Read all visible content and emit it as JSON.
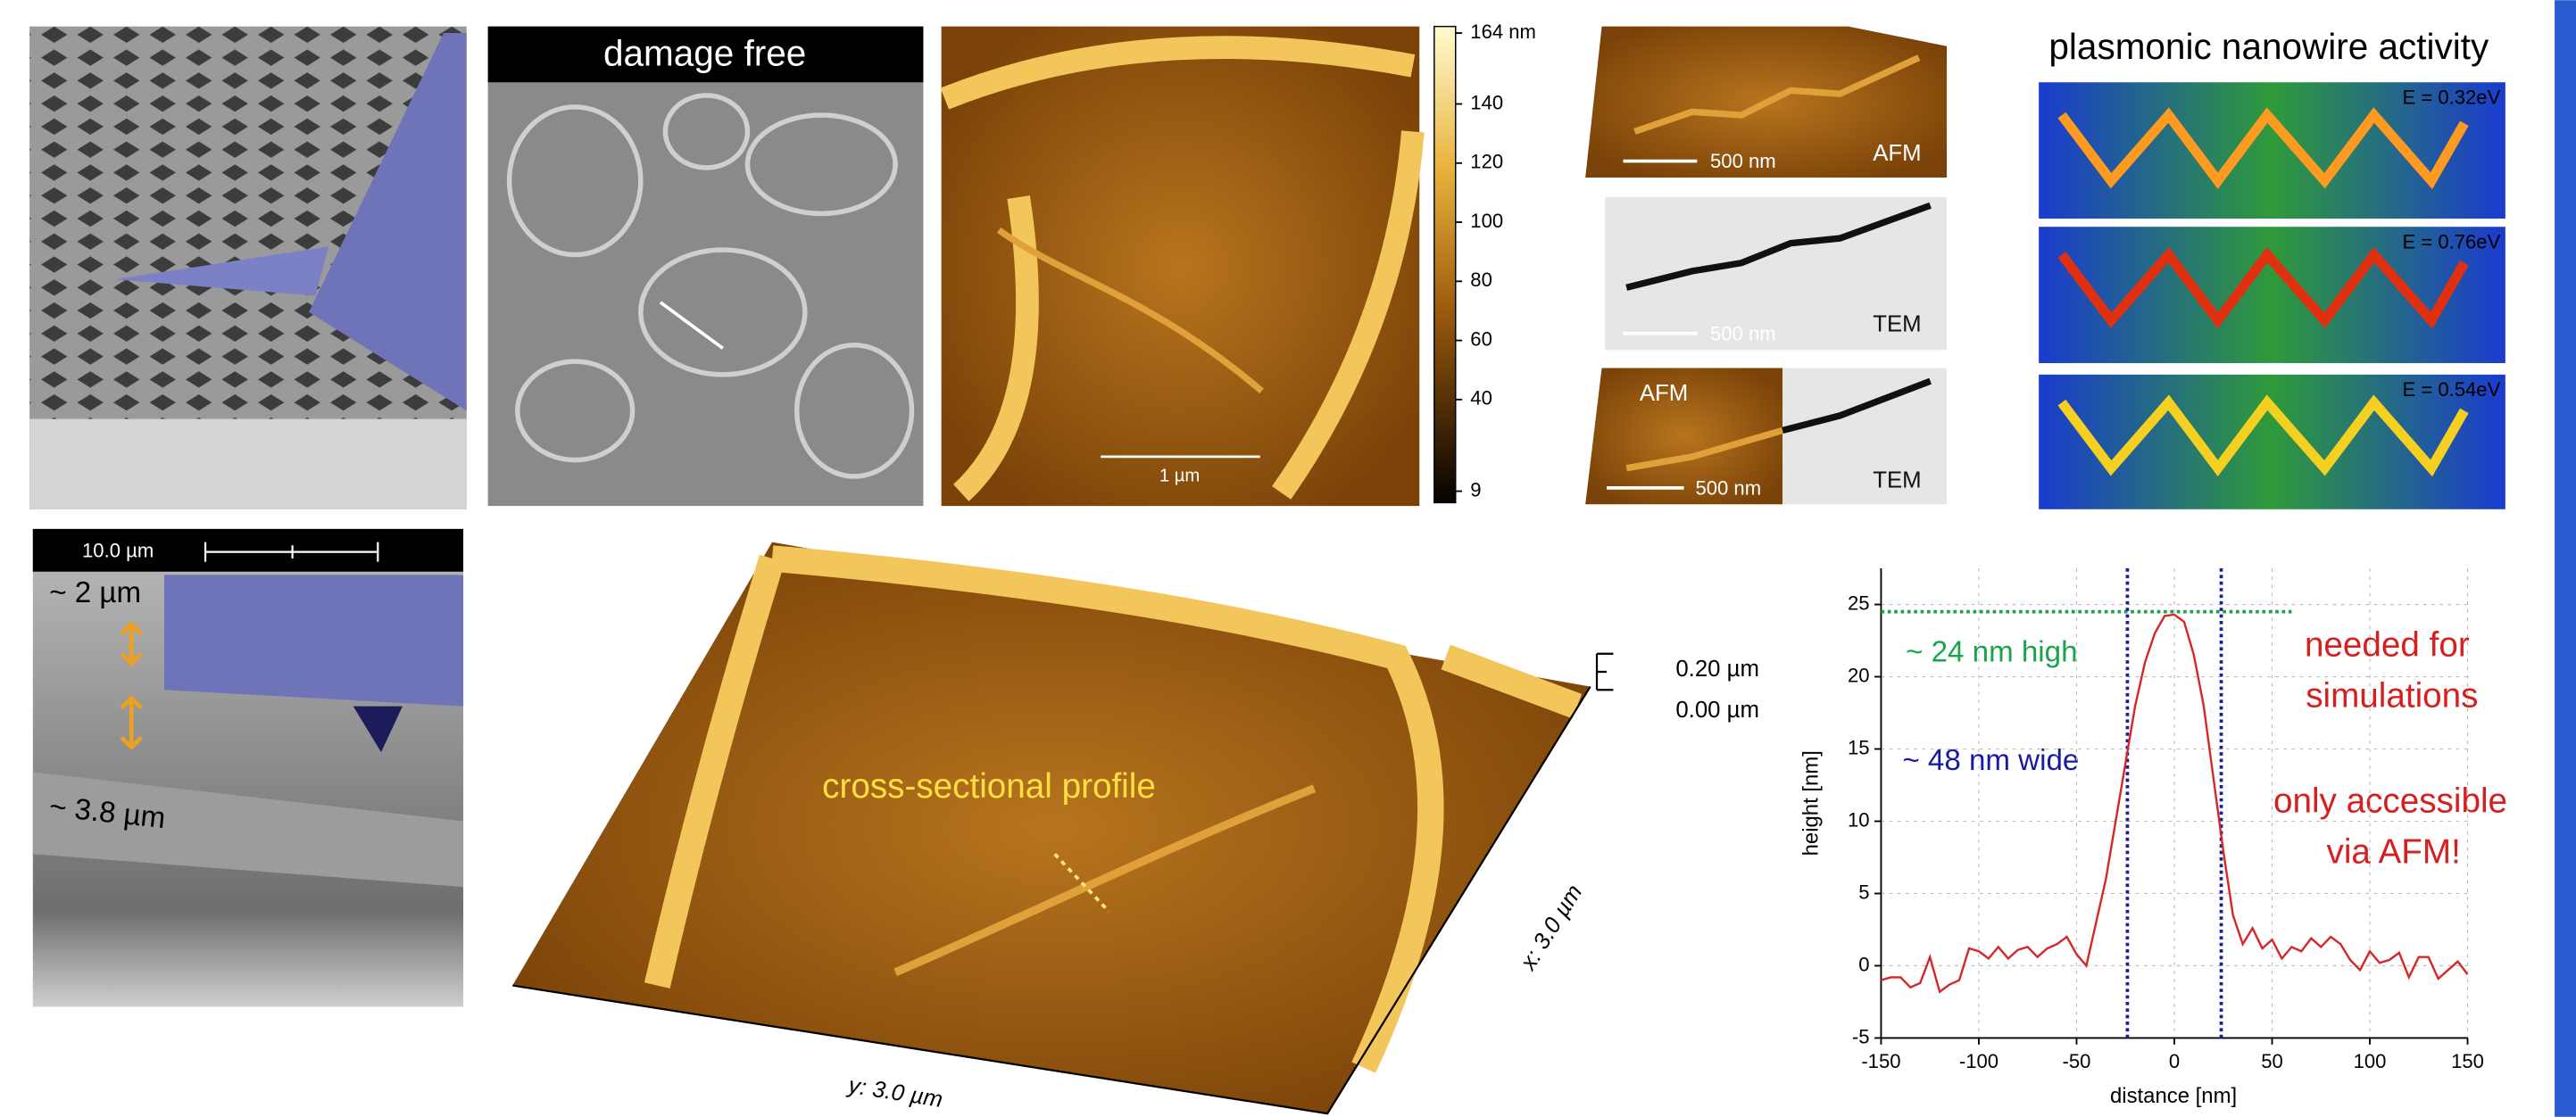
{
  "panels": {
    "damage_free": "damage free",
    "afm_scale": "1 µm",
    "colorbar": {
      "ylim": [
        9,
        164
      ],
      "ticks": [
        {
          "value": 164,
          "label": "164 nm"
        },
        140,
        120,
        100,
        80,
        60,
        40,
        9
      ]
    },
    "correlative": {
      "afm_scale": "500 nm",
      "afm_label": "AFM",
      "tem_scale": "500 nm",
      "tem_label": "TEM",
      "overlay_afm": "AFM",
      "overlay_scale": "500 nm",
      "overlay_tem": "TEM"
    },
    "plasmonic": {
      "title": "plasmonic nanowire activity",
      "energies": [
        "E = 0.32eV",
        "E = 0.76eV",
        "E = 0.54eV"
      ]
    },
    "cross_section": {
      "scale": "10.0 µm",
      "gap": "~ 2 µm",
      "depth": "~ 3.8 µm"
    },
    "topography": {
      "label": "cross-sectional profile",
      "z_ticks": [
        "0.20 µm",
        "0.00 µm"
      ],
      "x_axis": "x: 3.0 µm",
      "y_axis": "y: 3.0 µm"
    }
  },
  "chart_data": {
    "type": "line",
    "x_label": "distance [nm]",
    "y_label": "height [nm]",
    "x": [
      -150,
      -145,
      -140,
      -135,
      -130,
      -125,
      -120,
      -115,
      -110,
      -105,
      -100,
      -95,
      -90,
      -85,
      -80,
      -75,
      -70,
      -65,
      -60,
      -55,
      -50,
      -45,
      -40,
      -35,
      -30,
      -25,
      -20,
      -15,
      -10,
      -5,
      0,
      5,
      10,
      15,
      20,
      25,
      30,
      35,
      40,
      45,
      50,
      55,
      60,
      65,
      70,
      75,
      80,
      85,
      90,
      95,
      100,
      105,
      110,
      115,
      120,
      125,
      130,
      135,
      140,
      145,
      150
    ],
    "values": [
      -1,
      -0.8,
      -0.8,
      -1.5,
      -1.2,
      0.6,
      -1.8,
      -1.3,
      -1,
      1.2,
      1,
      0.5,
      1.3,
      0.5,
      1.1,
      1.3,
      0.6,
      1.2,
      1.5,
      2,
      0.8,
      0,
      3,
      6,
      10,
      14,
      18,
      21,
      23,
      24.2,
      24.3,
      23.8,
      21.5,
      18,
      13,
      8,
      3.5,
      1.5,
      2.6,
      1.2,
      1.8,
      0.5,
      1.3,
      1,
      1.9,
      1.3,
      2,
      1.5,
      0.4,
      -0.3,
      1,
      0.2,
      0.4,
      0.9,
      -0.8,
      0.6,
      0.6,
      -0.9,
      -0.3,
      0.3,
      -0.6
    ],
    "color": "#d62728",
    "xlim": [
      -150,
      150
    ],
    "ylim": [
      -5,
      27.5
    ],
    "xticks": [
      -150,
      -100,
      -50,
      0,
      50,
      100,
      150
    ],
    "yticks": [
      -5,
      0,
      5,
      10,
      15,
      20,
      25
    ],
    "grid": true,
    "hline": 24.5,
    "vlines": [
      -24,
      24
    ],
    "annotations": {
      "height": "~ 24 nm high",
      "width": "~ 48 nm wide",
      "needed": [
        "needed for",
        "simulations"
      ],
      "accessible": [
        "only accessible",
        "via AFM!"
      ]
    }
  }
}
